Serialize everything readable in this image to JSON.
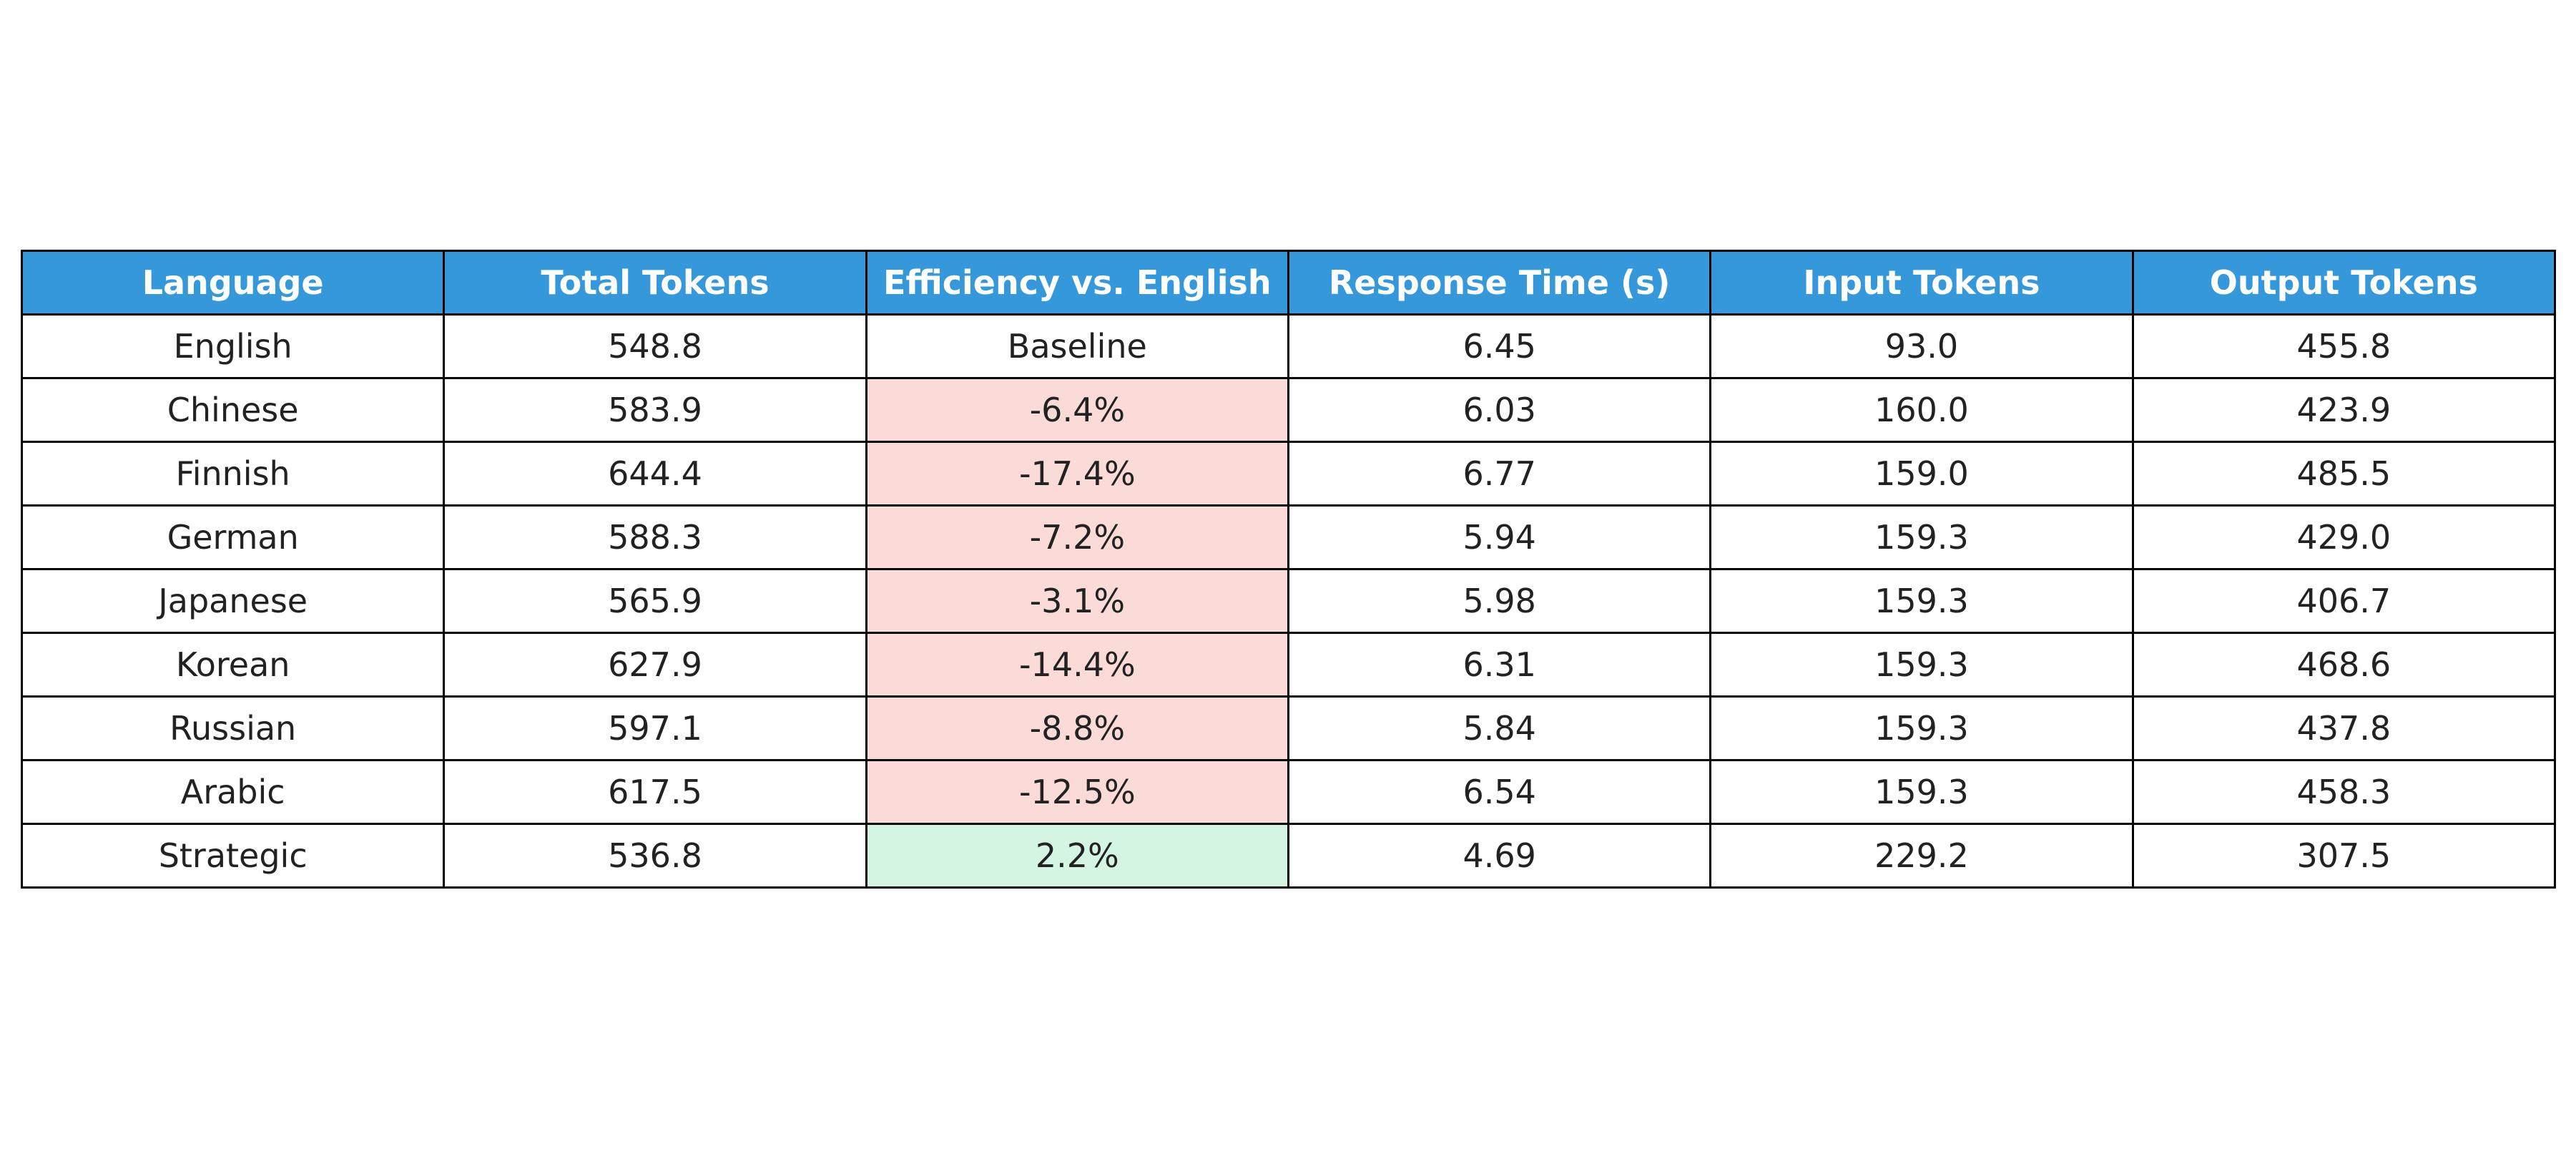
{
  "colors": {
    "header_bg": "#3498db",
    "header_text": "#ffffff",
    "negative_bg": "#fadbd8",
    "positive_bg": "#d5f5e3",
    "border": "#000000"
  },
  "chart_data": {
    "type": "table",
    "columns": [
      "Language",
      "Total Tokens",
      "Efficiency vs. English",
      "Response Time (s)",
      "Input Tokens",
      "Output Tokens"
    ],
    "rows": [
      [
        "English",
        "548.8",
        "Baseline",
        "6.45",
        "93.0",
        "455.8"
      ],
      [
        "Chinese",
        "583.9",
        "-6.4%",
        "6.03",
        "160.0",
        "423.9"
      ],
      [
        "Finnish",
        "644.4",
        "-17.4%",
        "6.77",
        "159.0",
        "485.5"
      ],
      [
        "German",
        "588.3",
        "-7.2%",
        "5.94",
        "159.3",
        "429.0"
      ],
      [
        "Japanese",
        "565.9",
        "-3.1%",
        "5.98",
        "159.3",
        "406.7"
      ],
      [
        "Korean",
        "627.9",
        "-14.4%",
        "6.31",
        "159.3",
        "468.6"
      ],
      [
        "Russian",
        "597.1",
        "-8.8%",
        "5.84",
        "159.3",
        "437.8"
      ],
      [
        "Arabic",
        "617.5",
        "-12.5%",
        "6.54",
        "159.3",
        "458.3"
      ],
      [
        "Strategic",
        "536.8",
        "2.2%",
        "4.69",
        "229.2",
        "307.5"
      ]
    ]
  }
}
